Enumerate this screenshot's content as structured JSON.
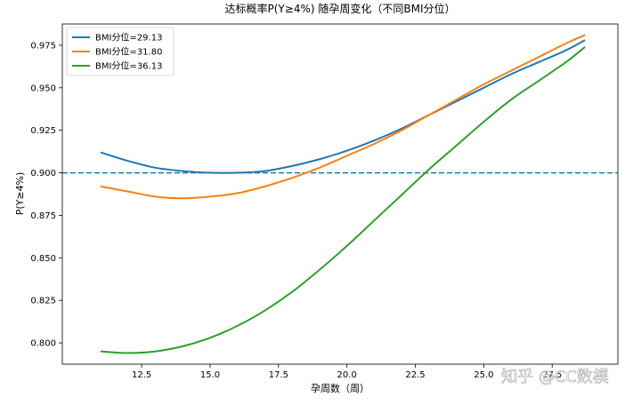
{
  "chart_data": {
    "type": "line",
    "title": "达标概率P(Y≥4%) 随孕周变化（不同BMI分位）",
    "xlabel": "孕周数（周）",
    "ylabel": "P(Y≥4%)",
    "xlim": [
      9.6,
      29.9
    ],
    "ylim": [
      0.7875,
      0.9875
    ],
    "xticks": [
      12.5,
      15.0,
      17.5,
      20.0,
      22.5,
      25.0,
      27.5
    ],
    "xtick_labels": [
      "12.5",
      "15.0",
      "17.5",
      "20.0",
      "22.5",
      "25.0",
      "27.5"
    ],
    "yticks": [
      0.8,
      0.825,
      0.85,
      0.875,
      0.9,
      0.925,
      0.95,
      0.975
    ],
    "ytick_labels": [
      "0.800",
      "0.825",
      "0.850",
      "0.875",
      "0.900",
      "0.925",
      "0.950",
      "0.975"
    ],
    "threshold": {
      "value": 0.9,
      "style": "dashed",
      "color": "#1f77b4"
    },
    "legend_position": "top-left",
    "grid": false,
    "series": [
      {
        "name": "BMI分位=29.13",
        "color": "#1f77b4",
        "x": [
          11.0,
          12.0,
          13.0,
          14.0,
          15.0,
          16.0,
          17.0,
          18.0,
          19.0,
          20.0,
          21.0,
          22.0,
          23.0,
          24.0,
          25.0,
          26.0,
          27.0,
          28.0,
          28.7
        ],
        "y": [
          0.912,
          0.907,
          0.903,
          0.901,
          0.9,
          0.9,
          0.901,
          0.904,
          0.908,
          0.913,
          0.919,
          0.926,
          0.934,
          0.942,
          0.95,
          0.958,
          0.965,
          0.972,
          0.978
        ]
      },
      {
        "name": "BMI分位=31.80",
        "color": "#ff7f0e",
        "x": [
          11.0,
          12.0,
          13.0,
          14.0,
          15.0,
          16.0,
          17.0,
          18.0,
          19.0,
          20.0,
          21.0,
          22.0,
          23.0,
          24.0,
          25.0,
          26.0,
          27.0,
          28.0,
          28.7
        ],
        "y": [
          0.892,
          0.889,
          0.886,
          0.885,
          0.886,
          0.888,
          0.892,
          0.897,
          0.903,
          0.91,
          0.917,
          0.925,
          0.934,
          0.943,
          0.952,
          0.96,
          0.968,
          0.976,
          0.981
        ]
      },
      {
        "name": "BMI分位=36.13",
        "color": "#2ca02c",
        "x": [
          11.0,
          12.0,
          13.0,
          14.0,
          15.0,
          16.0,
          17.0,
          18.0,
          19.0,
          20.0,
          21.0,
          22.0,
          23.0,
          24.0,
          25.0,
          26.0,
          27.0,
          28.0,
          28.7
        ],
        "y": [
          0.795,
          0.794,
          0.795,
          0.798,
          0.803,
          0.81,
          0.819,
          0.83,
          0.843,
          0.857,
          0.872,
          0.887,
          0.902,
          0.916,
          0.93,
          0.943,
          0.954,
          0.965,
          0.974
        ]
      }
    ]
  },
  "watermark": {
    "text": "知乎 @CC数模"
  }
}
